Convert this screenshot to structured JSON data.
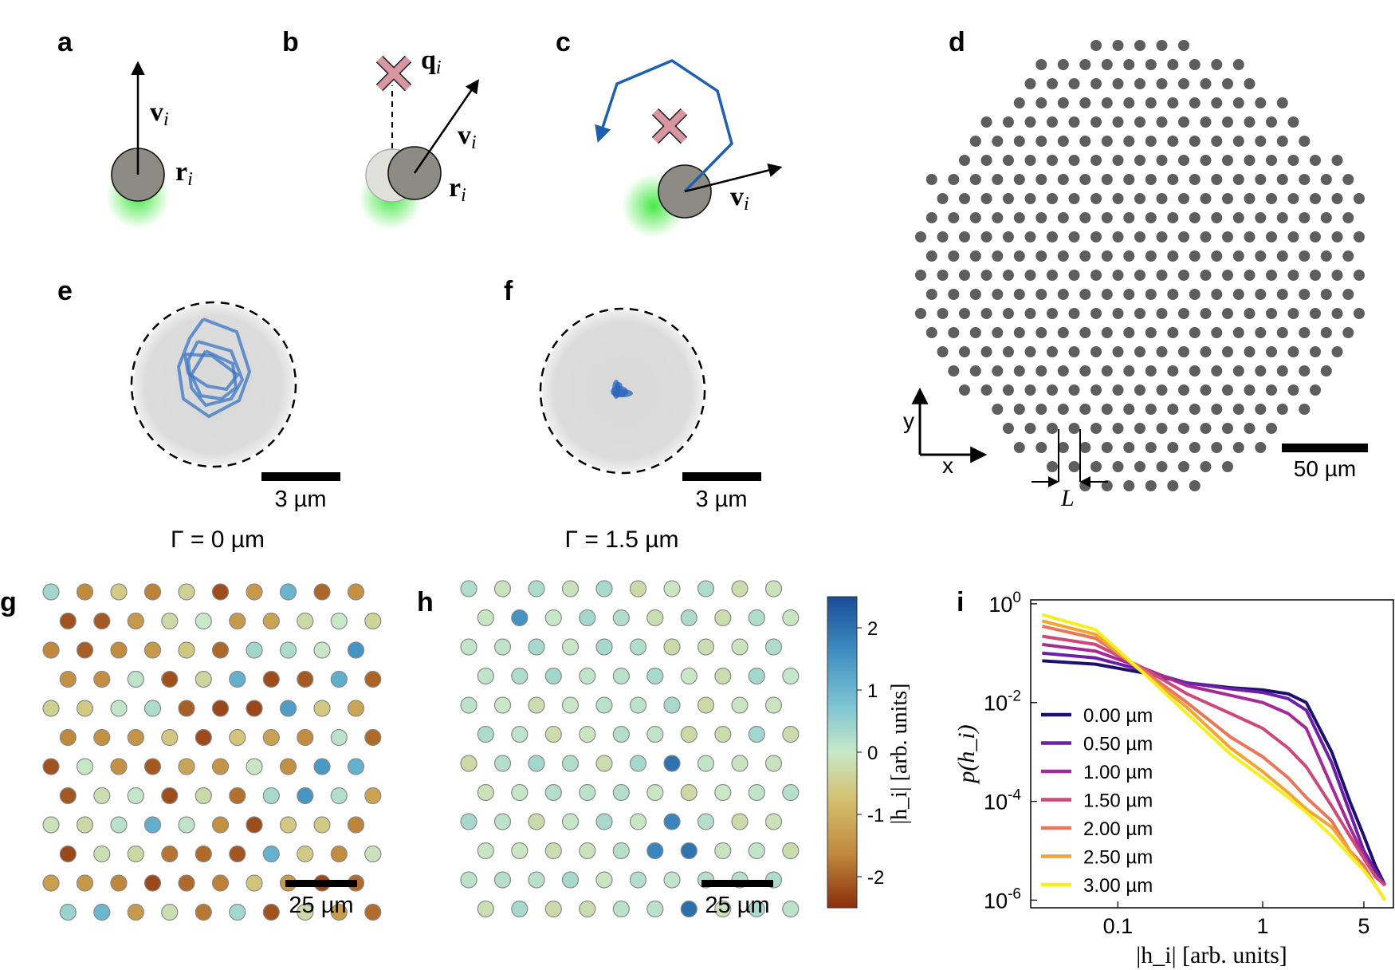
{
  "panels": {
    "a": {
      "letter": "a",
      "label_v": "v",
      "label_r": "r",
      "subscript": "i"
    },
    "b": {
      "letter": "b",
      "label_q": "q",
      "label_v": "v",
      "label_r": "r",
      "subscript": "i"
    },
    "c": {
      "letter": "c",
      "label_v": "v",
      "subscript": "i"
    },
    "d": {
      "letter": "d",
      "axis_x": "x",
      "axis_y": "y",
      "spacing_label": "L",
      "scalebar": "50 µm"
    },
    "e": {
      "letter": "e",
      "scalebar": "3 µm",
      "caption": "Γ = 0 µm"
    },
    "f": {
      "letter": "f",
      "scalebar": "3 µm",
      "caption": "Γ = 1.5 µm"
    },
    "g": {
      "letter": "g",
      "scalebar": "25 µm"
    },
    "h": {
      "letter": "h",
      "scalebar": "25 µm"
    },
    "colorbar": {
      "label": "|h_i| [arb. units]",
      "ticks": [
        "2",
        "1",
        "0",
        "-1",
        "-2"
      ],
      "range": [
        -2.5,
        2.5
      ],
      "colors": [
        "#8b2e0c",
        "#c0873a",
        "#d4c070",
        "#c8e8c8",
        "#7cc4d4",
        "#3c8cc0",
        "#1a4c96"
      ]
    },
    "i": {
      "letter": "i"
    }
  },
  "chart_data": {
    "type": "line",
    "title": "",
    "xlabel": "|h_i| [arb. units]",
    "ylabel": "p(h_i)",
    "xscale": "log",
    "yscale": "log",
    "xlim": [
      0.025,
      8
    ],
    "ylim": [
      7e-07,
      1.2
    ],
    "xticks": [
      "0.1",
      "1",
      "5"
    ],
    "yticks": [
      "10^0",
      "10^-2",
      "10^-4",
      "10^-6"
    ],
    "legend_position": "bottom-left",
    "series": [
      {
        "name": "0.00 µm",
        "color": "#1c0f6e",
        "x": [
          0.03,
          0.07,
          0.15,
          0.3,
          0.6,
          1.0,
          1.5,
          2.0,
          3.0,
          4.0,
          5.0,
          6.0,
          7.0
        ],
        "y": [
          0.07,
          0.06,
          0.04,
          0.025,
          0.02,
          0.018,
          0.015,
          0.01,
          0.001,
          0.0001,
          2e-05,
          5e-06,
          2e-06
        ]
      },
      {
        "name": "0.50 µm",
        "color": "#6e1fa8",
        "x": [
          0.03,
          0.07,
          0.15,
          0.3,
          0.6,
          1.0,
          1.5,
          2.0,
          3.0,
          4.0,
          5.0,
          6.0,
          7.0
        ],
        "y": [
          0.1,
          0.08,
          0.045,
          0.025,
          0.019,
          0.016,
          0.012,
          0.007,
          0.0006,
          6e-05,
          1e-05,
          4e-06,
          2e-06
        ]
      },
      {
        "name": "1.00 µm",
        "color": "#a52a96",
        "x": [
          0.03,
          0.07,
          0.15,
          0.3,
          0.6,
          1.0,
          1.5,
          2.0,
          3.0,
          4.0,
          5.0,
          6.0,
          7.0
        ],
        "y": [
          0.15,
          0.11,
          0.05,
          0.022,
          0.014,
          0.01,
          0.006,
          0.003,
          0.0002,
          3e-05,
          8e-06,
          3e-06,
          2e-06
        ]
      },
      {
        "name": "1.50 µm",
        "color": "#cc4a7a",
        "x": [
          0.03,
          0.07,
          0.15,
          0.3,
          0.6,
          1.0,
          1.5,
          2.0,
          3.0,
          4.0,
          5.0,
          6.0,
          7.0
        ],
        "y": [
          0.22,
          0.15,
          0.05,
          0.015,
          0.006,
          0.003,
          0.0012,
          0.0005,
          8e-05,
          2e-05,
          7e-06,
          3e-06,
          2e-06
        ]
      },
      {
        "name": "2.00 µm",
        "color": "#e8765a",
        "x": [
          0.03,
          0.07,
          0.15,
          0.3,
          0.6,
          1.0,
          1.5,
          2.0,
          3.0,
          4.0,
          5.0,
          6.0,
          7.0
        ],
        "y": [
          0.35,
          0.2,
          0.045,
          0.01,
          0.002,
          0.0008,
          0.0003,
          0.00012,
          4e-05,
          1e-05,
          5e-06,
          2e-06,
          1e-06
        ]
      },
      {
        "name": "2.50 µm",
        "color": "#f2a530",
        "x": [
          0.03,
          0.07,
          0.15,
          0.3,
          0.6,
          1.0,
          1.5,
          2.0,
          3.0,
          4.0,
          5.0,
          6.0,
          7.0
        ],
        "y": [
          0.45,
          0.24,
          0.04,
          0.008,
          0.0012,
          0.0004,
          0.00015,
          7e-05,
          3e-05,
          1e-05,
          4e-06,
          2e-06,
          1e-06
        ]
      },
      {
        "name": "3.00 µm",
        "color": "#f5ee22",
        "x": [
          0.03,
          0.07,
          0.15,
          0.3,
          0.6,
          1.0,
          1.5,
          2.0,
          3.0,
          4.0,
          5.0,
          6.0,
          7.0
        ],
        "y": [
          0.6,
          0.3,
          0.04,
          0.006,
          0.0009,
          0.0003,
          0.00012,
          6e-05,
          2e-05,
          8e-06,
          4e-06,
          2e-06,
          1e-06
        ]
      }
    ]
  }
}
